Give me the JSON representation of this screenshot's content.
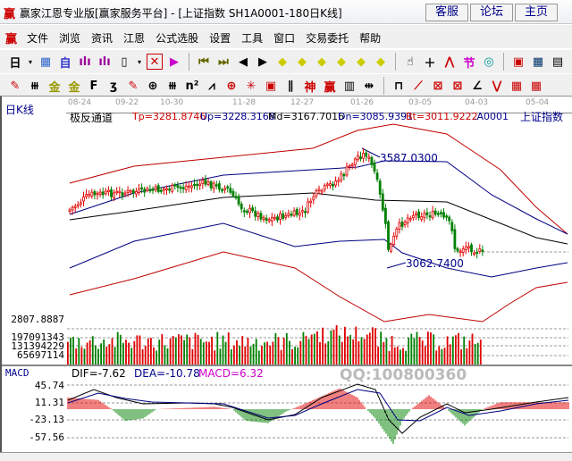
{
  "titlebar": {
    "logo": "赢",
    "title": "赢家江恩专业版[赢家服务平台] - [上证指数  SH1A0001-180日K线]",
    "buttons": [
      "客服",
      "论坛",
      "主页"
    ]
  },
  "menu": {
    "logo": "赢",
    "items": [
      "文件",
      "浏览",
      "资讯",
      "江恩",
      "公式选股",
      "设置",
      "工具",
      "窗口",
      "交易委托",
      "帮助"
    ]
  },
  "chart": {
    "period": "日K线",
    "dates": [
      "08-24",
      "09-22",
      "10-30",
      "11-28",
      "12-27",
      "01-26",
      "03-05",
      "04-03",
      "05-04"
    ],
    "indicator": "极反通道",
    "values": {
      "tp": "Tp=3281.8746",
      "up": "Up=3228.3168",
      "md": "Md=3167.7016",
      "dn": "Dn=3085.9391",
      "bt": "Bt=3011.9222"
    },
    "code": ".A0001",
    "name": "上证指数",
    "high_label": "3587.0300",
    "low_label": "3062.7400",
    "volume_axis": [
      "2807.8887",
      "197091343",
      "131394229",
      "65697114"
    ],
    "watermark": "QQ:100800360",
    "colors": {
      "up": "#e00000",
      "down": "#008000",
      "band_outer": "#c00000",
      "band_inner": "#000080",
      "mid": "#000000"
    }
  },
  "macd": {
    "title": "MACD",
    "dif": "DIF=-7.62",
    "dea": "DEA=-10.78",
    "macd": "MACD=6.32",
    "axis": [
      "45.74",
      "11.31",
      "-23.13",
      "-57.56"
    ]
  }
}
